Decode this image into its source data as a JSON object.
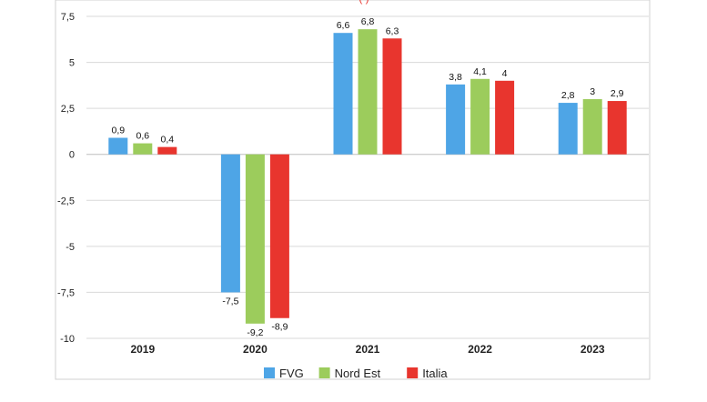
{
  "chart_data": {
    "type": "bar",
    "subtitle_fragment": "(                                                                                  )",
    "categories": [
      "2019",
      "2020",
      "2021",
      "2022",
      "2023"
    ],
    "series": [
      {
        "name": "FVG",
        "color": "#4ea5e6",
        "values": [
          0.9,
          -7.5,
          6.6,
          3.8,
          2.8
        ],
        "labels": [
          "0,9",
          "-7,5",
          "6,6",
          "3,8",
          "2,8"
        ]
      },
      {
        "name": "Nord Est",
        "color": "#9ccc5c",
        "values": [
          0.6,
          -9.2,
          6.8,
          4.1,
          3.0
        ],
        "labels": [
          "0,6",
          "-9,2",
          "6,8",
          "4,1",
          "3"
        ]
      },
      {
        "name": "Italia",
        "color": "#e8352e",
        "values": [
          0.4,
          -8.9,
          6.3,
          4.0,
          2.9
        ],
        "labels": [
          "0,4",
          "-8,9",
          "6,3",
          "4",
          "2,9"
        ]
      }
    ],
    "yticks": [
      7.5,
      5,
      2.5,
      0,
      -2.5,
      -5,
      -7.5,
      -10
    ],
    "ytick_labels": [
      "7,5",
      "5",
      "2,5",
      "0",
      "-2,5",
      "-5",
      "-7,5",
      "-10"
    ],
    "ylim": [
      -10,
      7.5
    ],
    "grid": true,
    "legend_position": "bottom"
  }
}
